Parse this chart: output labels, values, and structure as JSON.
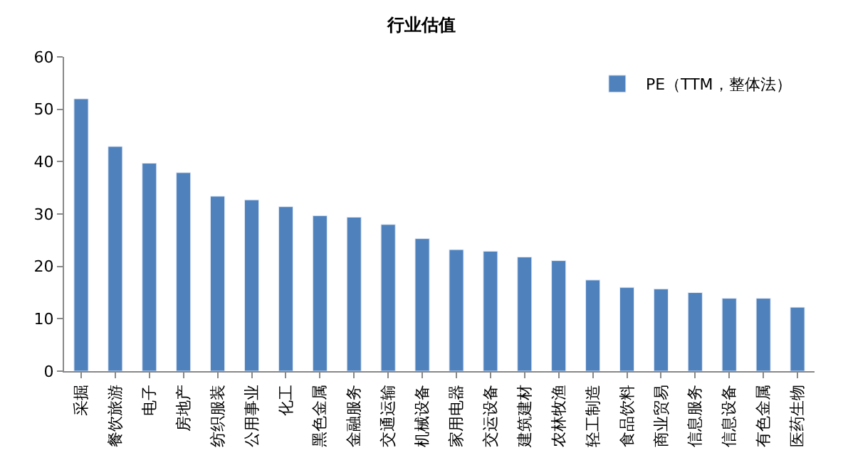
{
  "chart_data": {
    "type": "bar",
    "title": "行业估值",
    "categories": [
      "采掘",
      "餐饮旅游",
      "电子",
      "房地产",
      "纺织服装",
      "公用事业",
      "化工",
      "黑色金属",
      "金融服务",
      "交通运输",
      "机械设备",
      "家用电器",
      "交运设备",
      "建筑建材",
      "农林牧渔",
      "轻工制造",
      "食品饮料",
      "商业贸易",
      "信息服务",
      "信息设备",
      "有色金属",
      "医药生物"
    ],
    "series": [
      {
        "name": "PE（TTM，整体法）",
        "color": "#4f81bd",
        "values": [
          52.0,
          42.9,
          39.7,
          37.9,
          33.4,
          32.7,
          31.4,
          29.7,
          29.4,
          28.0,
          25.3,
          23.2,
          22.9,
          21.8,
          21.1,
          17.4,
          16.0,
          15.7,
          15.0,
          13.9,
          13.9,
          12.2
        ]
      }
    ],
    "ylim": [
      0,
      60
    ],
    "yticks": [
      0,
      10,
      20,
      30,
      40,
      50,
      60
    ],
    "legend": "top right"
  }
}
